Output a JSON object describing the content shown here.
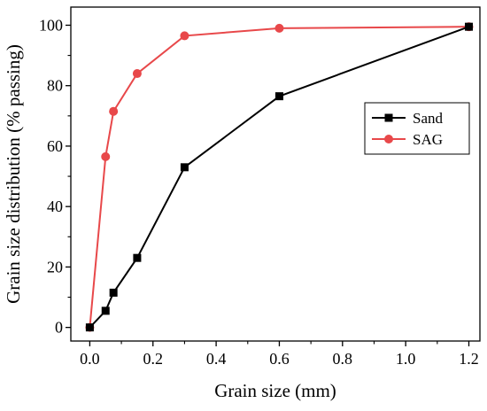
{
  "chart_data": {
    "type": "line",
    "xlabel": "Grain size (mm)",
    "ylabel": "Grain size distribution (% passing)",
    "xlim": [
      -0.06,
      1.235
    ],
    "ylim": [
      -4.5,
      106
    ],
    "xticks": [
      0.0,
      0.2,
      0.4,
      0.6,
      0.8,
      1.0,
      1.2
    ],
    "xtick_labels": [
      "0.0",
      "0.2",
      "0.4",
      "0.6",
      "0.8",
      "1.0",
      "1.2"
    ],
    "yticks": [
      0,
      20,
      40,
      60,
      80,
      100
    ],
    "ytick_labels": [
      "0",
      "20",
      "40",
      "60",
      "80",
      "100"
    ],
    "grid": false,
    "legend_position": "right",
    "series": [
      {
        "name": "Sand",
        "color": "#000000",
        "marker": "square",
        "points": [
          {
            "x": 0.0,
            "y": 0.0
          },
          {
            "x": 0.05,
            "y": 5.5
          },
          {
            "x": 0.075,
            "y": 11.5
          },
          {
            "x": 0.15,
            "y": 23.0
          },
          {
            "x": 0.3,
            "y": 53.0
          },
          {
            "x": 0.6,
            "y": 76.5
          },
          {
            "x": 1.2,
            "y": 99.5
          }
        ]
      },
      {
        "name": "SAG",
        "color": "#e8484a",
        "marker": "circle",
        "points": [
          {
            "x": 0.0,
            "y": 0.0
          },
          {
            "x": 0.05,
            "y": 56.5
          },
          {
            "x": 0.075,
            "y": 71.5
          },
          {
            "x": 0.15,
            "y": 84.0
          },
          {
            "x": 0.3,
            "y": 96.5
          },
          {
            "x": 0.6,
            "y": 99.0
          },
          {
            "x": 1.2,
            "y": 99.5
          }
        ]
      }
    ]
  }
}
